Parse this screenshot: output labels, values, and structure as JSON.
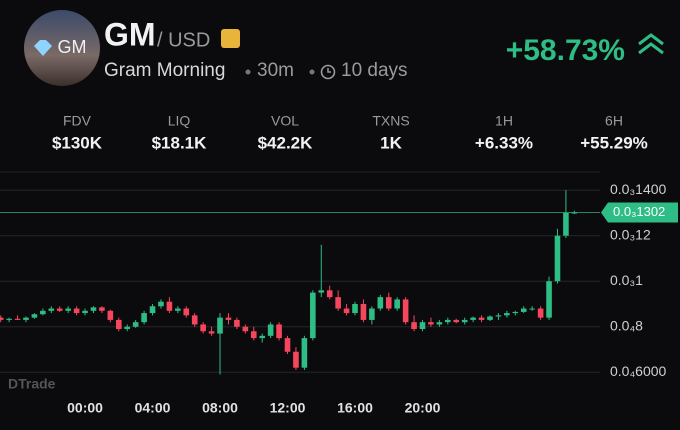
{
  "header": {
    "avatar_text": "GM",
    "symbol": "GM",
    "quote": "/ USD",
    "name": "Gram Morning",
    "interval": "30m",
    "age": "10 days",
    "change": "+58.73%"
  },
  "stats": [
    {
      "label": "FDV",
      "value": "$130K"
    },
    {
      "label": "LIQ",
      "value": "$18.1K"
    },
    {
      "label": "VOL",
      "value": "$42.2K"
    },
    {
      "label": "TXNS",
      "value": "1K"
    },
    {
      "label": "1H",
      "value": "+6.33%"
    },
    {
      "label": "6H",
      "value": "+55.29%"
    }
  ],
  "watermark": "DTrade",
  "chart_data": {
    "type": "candlestick",
    "x": [
      -5,
      -4.5,
      -4,
      -3.5,
      -3,
      -2.5,
      -2,
      -1.5,
      -1,
      -0.5,
      0,
      0.5,
      1,
      1.5,
      2,
      2.5,
      3,
      3.5,
      4,
      4.5,
      5,
      5.5,
      6,
      6.5,
      7,
      7.5,
      8,
      8.5,
      9,
      9.5,
      10,
      10.5,
      11,
      11.5,
      12,
      12.5,
      13,
      13.5,
      14,
      14.5,
      15,
      15.5,
      16,
      16.5,
      17,
      17.5,
      18,
      18.5,
      19,
      19.5,
      20,
      20.5,
      21,
      21.5,
      22,
      22.5,
      23,
      23.5,
      24,
      24.5,
      25,
      25.5,
      26,
      26.5,
      27,
      27.5,
      28,
      28.5,
      29
    ],
    "open": [
      8.4e-05,
      8.3e-05,
      8.35e-05,
      8.3e-05,
      8.4e-05,
      8.55e-05,
      8.7e-05,
      8.8e-05,
      8.7e-05,
      8.8e-05,
      8.6e-05,
      8.7e-05,
      8.85e-05,
      8.7e-05,
      8.3e-05,
      7.9e-05,
      8e-05,
      8.2e-05,
      8.6e-05,
      8.9e-05,
      9.1e-05,
      8.7e-05,
      8.8e-05,
      8.5e-05,
      8.1e-05,
      7.8e-05,
      7.7e-05,
      8.4e-05,
      8.3e-05,
      8e-05,
      7.8e-05,
      7.5e-05,
      7.6e-05,
      8.1e-05,
      7.5e-05,
      6.9e-05,
      6.2e-05,
      7.5e-05,
      9.5e-05,
      9.6e-05,
      9.3e-05,
      8.8e-05,
      8.6e-05,
      9e-05,
      8.3e-05,
      8.8e-05,
      9.3e-05,
      8.8e-05,
      9.2e-05,
      8.2e-05,
      7.9e-05,
      8.2e-05,
      8.1e-05,
      8.2e-05,
      8.3e-05,
      8.2e-05,
      8.3e-05,
      8.4e-05,
      8.3e-05,
      8.45e-05,
      8.5e-05,
      8.6e-05,
      8.65e-05,
      8.8e-05,
      8.8e-05,
      8.4e-05,
      0.0001,
      0.00012,
      0.00013
    ],
    "high": [
      8.5e-05,
      8.4e-05,
      8.5e-05,
      8.45e-05,
      8.6e-05,
      8.8e-05,
      8.9e-05,
      8.9e-05,
      8.9e-05,
      8.9e-05,
      8.8e-05,
      8.9e-05,
      8.9e-05,
      8.75e-05,
      8.4e-05,
      8.1e-05,
      8.3e-05,
      8.7e-05,
      9e-05,
      9.2e-05,
      9.3e-05,
      8.9e-05,
      8.9e-05,
      8.6e-05,
      8.2e-05,
      8e-05,
      8.6e-05,
      8.6e-05,
      8.4e-05,
      8.1e-05,
      8e-05,
      7.7e-05,
      8.2e-05,
      8.2e-05,
      7.6e-05,
      7.1e-05,
      7.6e-05,
      9.6e-05,
      0.000116,
      9.8e-05,
      9.6e-05,
      9e-05,
      9.1e-05,
      9.2e-05,
      8.9e-05,
      9.4e-05,
      9.5e-05,
      9.3e-05,
      9.3e-05,
      8.5e-05,
      8.3e-05,
      8.4e-05,
      8.3e-05,
      8.4e-05,
      8.35e-05,
      8.4e-05,
      8.45e-05,
      8.5e-05,
      8.5e-05,
      8.6e-05,
      8.7e-05,
      8.7e-05,
      8.9e-05,
      8.9e-05,
      8.9e-05,
      0.000102,
      0.000123,
      0.00014,
      0.000131
    ],
    "low": [
      8.2e-05,
      8.2e-05,
      8.3e-05,
      8.2e-05,
      8.35e-05,
      8.5e-05,
      8.6e-05,
      8.65e-05,
      8.6e-05,
      8.5e-05,
      8.5e-05,
      8.6e-05,
      8.6e-05,
      8.2e-05,
      7.8e-05,
      7.8e-05,
      7.95e-05,
      8.1e-05,
      8.5e-05,
      8.8e-05,
      8.6e-05,
      8.6e-05,
      8.4e-05,
      8e-05,
      7.7e-05,
      7.6e-05,
      5.9e-05,
      8.1e-05,
      7.9e-05,
      7.7e-05,
      7.4e-05,
      7.3e-05,
      7.5e-05,
      7.4e-05,
      6.8e-05,
      6.1e-05,
      6.1e-05,
      7.4e-05,
      9.3e-05,
      9.2e-05,
      8.7e-05,
      8.5e-05,
      8.5e-05,
      8.2e-05,
      8.1e-05,
      8.7e-05,
      8.7e-05,
      8.7e-05,
      8.1e-05,
      7.8e-05,
      7.8e-05,
      8e-05,
      8e-05,
      8.1e-05,
      8.15e-05,
      8.1e-05,
      8.2e-05,
      8.2e-05,
      8.25e-05,
      8.3e-05,
      8.4e-05,
      8.5e-05,
      8.6e-05,
      8.7e-05,
      8.3e-05,
      8.3e-05,
      9.9e-05,
      0.000119,
      0.0001295
    ],
    "close": [
      8.3e-05,
      8.35e-05,
      8.3e-05,
      8.4e-05,
      8.55e-05,
      8.7e-05,
      8.8e-05,
      8.7e-05,
      8.8e-05,
      8.6e-05,
      8.7e-05,
      8.85e-05,
      8.7e-05,
      8.3e-05,
      7.9e-05,
      8e-05,
      8.2e-05,
      8.6e-05,
      8.9e-05,
      9.1e-05,
      8.7e-05,
      8.8e-05,
      8.5e-05,
      8.1e-05,
      7.8e-05,
      7.7e-05,
      8.4e-05,
      8.3e-05,
      8e-05,
      7.8e-05,
      7.5e-05,
      7.6e-05,
      8.1e-05,
      7.5e-05,
      6.9e-05,
      6.2e-05,
      7.5e-05,
      9.5e-05,
      9.6e-05,
      9.3e-05,
      8.8e-05,
      8.6e-05,
      9e-05,
      8.3e-05,
      8.8e-05,
      9.3e-05,
      8.8e-05,
      9.2e-05,
      8.2e-05,
      7.9e-05,
      8.2e-05,
      8.1e-05,
      8.2e-05,
      8.3e-05,
      8.2e-05,
      8.3e-05,
      8.4e-05,
      8.3e-05,
      8.45e-05,
      8.5e-05,
      8.6e-05,
      8.65e-05,
      8.8e-05,
      8.8e-05,
      8.4e-05,
      0.0001,
      0.00012,
      0.00013,
      0.0001302
    ],
    "up_color": "#2ebd85",
    "down_color": "#f6465d",
    "last_price": {
      "value": 0.0001302,
      "label": "0.0₃1302"
    },
    "xlim": [
      -5.04,
      30.52
    ],
    "xticks": [
      {
        "value": 0,
        "label": "00:00"
      },
      {
        "value": 4,
        "label": "04:00"
      },
      {
        "value": 8,
        "label": "08:00"
      },
      {
        "value": 12,
        "label": "12:00"
      },
      {
        "value": 16,
        "label": "16:00"
      },
      {
        "value": 20,
        "label": "20:00"
      }
    ],
    "ylim": [
      5e-05,
      0.000148
    ],
    "yticks": [
      {
        "value": 0.00014,
        "label": "0.0₃1400"
      },
      {
        "value": 0.00012,
        "label": "0.0₃12"
      },
      {
        "value": 0.0001,
        "label": "0.0₃1"
      },
      {
        "value": 8e-05,
        "label": "0.0₄8"
      },
      {
        "value": 6e-05,
        "label": "0.0₄6000"
      }
    ],
    "grid": true
  }
}
